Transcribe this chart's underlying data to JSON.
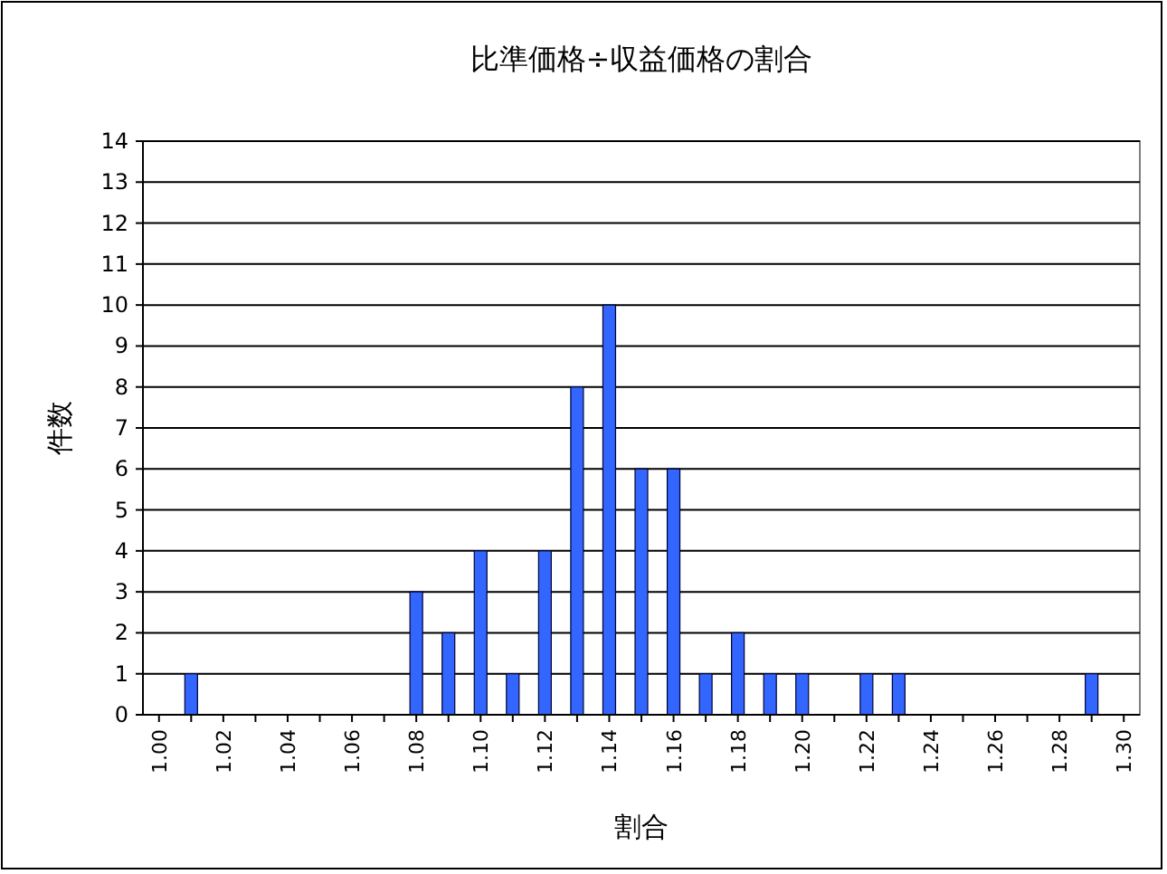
{
  "chart_data": {
    "type": "bar",
    "title": "比準価格÷収益価格の割合",
    "xlabel": "割合",
    "ylabel": "件数",
    "categories": [
      "1.00",
      null,
      "1.02",
      null,
      "1.04",
      null,
      "1.06",
      null,
      "1.08",
      null,
      "1.10",
      null,
      "1.12",
      null,
      "1.14",
      null,
      "1.16",
      null,
      "1.18",
      null,
      "1.20",
      null,
      "1.22",
      null,
      "1.24",
      null,
      "1.26",
      null,
      "1.28",
      null,
      "1.30"
    ],
    "values": [
      0,
      1,
      0,
      0,
      0,
      0,
      0,
      0,
      3,
      2,
      4,
      1,
      4,
      8,
      10,
      6,
      6,
      1,
      2,
      1,
      1,
      0,
      1,
      1,
      0,
      0,
      0,
      0,
      0,
      1,
      0
    ],
    "color": "#3366ff",
    "ylim": [
      0,
      14
    ],
    "yticks": [
      0,
      1,
      2,
      3,
      4,
      5,
      6,
      7,
      8,
      9,
      10,
      11,
      12,
      13,
      14
    ],
    "grid": "y"
  }
}
